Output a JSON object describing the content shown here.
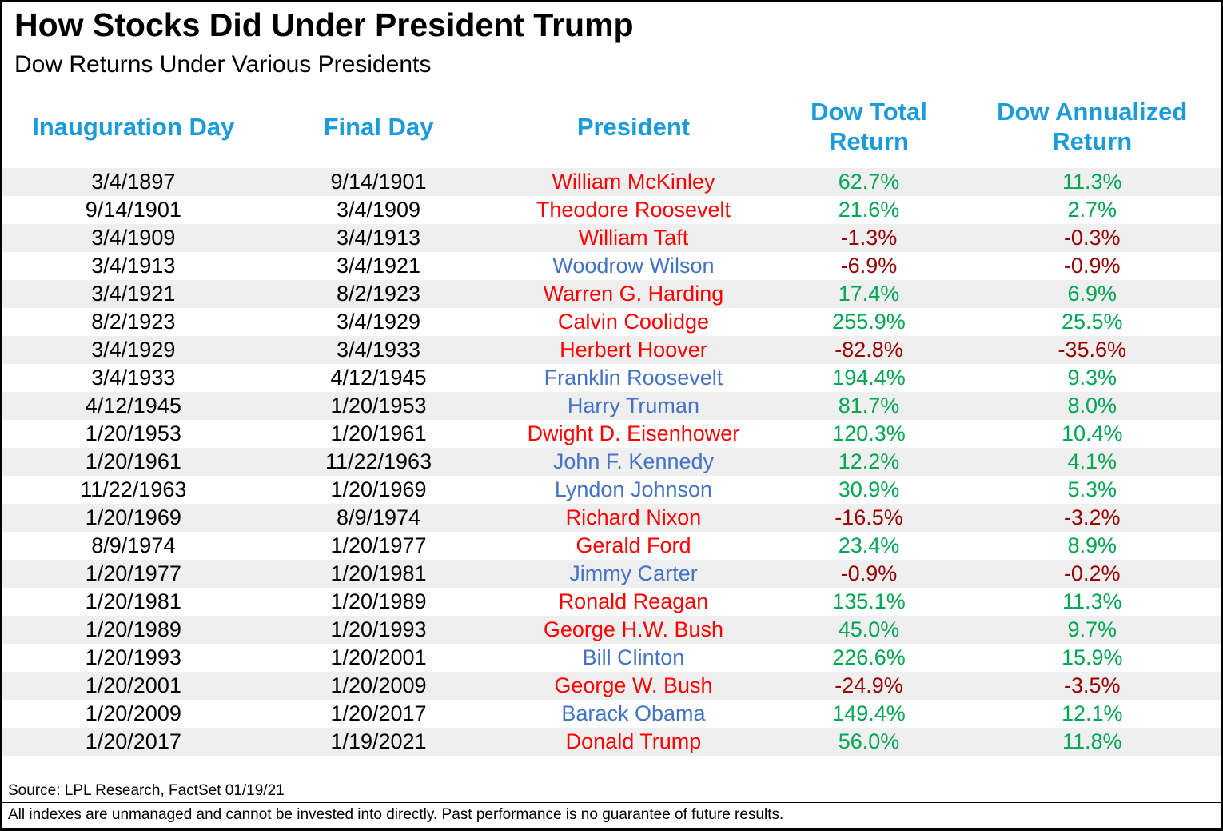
{
  "header": {
    "title": "How Stocks Did Under President Trump",
    "subtitle": "Dow Returns Under Various Presidents"
  },
  "colors": {
    "header_text": "#1B9BD9",
    "republican": "#FF0000",
    "democrat": "#4472C4",
    "positive": "#00A651",
    "negative": "#990000",
    "row_stripe": "#EFEFEF"
  },
  "chart_data": {
    "type": "table",
    "title": "How Stocks Did Under President Trump",
    "subtitle": "Dow Returns Under Various Presidents",
    "columns": [
      "Inauguration Day",
      "Final Day",
      "President",
      "Dow Total\nReturn",
      "Dow Annualized\nReturn"
    ],
    "rows": [
      {
        "inauguration_day": "3/4/1897",
        "final_day": "9/14/1901",
        "president": "William McKinley",
        "party": "republican",
        "dow_total_return": "62.7%",
        "dow_annualized_return": "11.3%"
      },
      {
        "inauguration_day": "9/14/1901",
        "final_day": "3/4/1909",
        "president": "Theodore Roosevelt",
        "party": "republican",
        "dow_total_return": "21.6%",
        "dow_annualized_return": "2.7%"
      },
      {
        "inauguration_day": "3/4/1909",
        "final_day": "3/4/1913",
        "president": "William Taft",
        "party": "republican",
        "dow_total_return": "-1.3%",
        "dow_annualized_return": "-0.3%"
      },
      {
        "inauguration_day": "3/4/1913",
        "final_day": "3/4/1921",
        "president": "Woodrow Wilson",
        "party": "democrat",
        "dow_total_return": "-6.9%",
        "dow_annualized_return": "-0.9%"
      },
      {
        "inauguration_day": "3/4/1921",
        "final_day": "8/2/1923",
        "president": "Warren G. Harding",
        "party": "republican",
        "dow_total_return": "17.4%",
        "dow_annualized_return": "6.9%"
      },
      {
        "inauguration_day": "8/2/1923",
        "final_day": "3/4/1929",
        "president": "Calvin Coolidge",
        "party": "republican",
        "dow_total_return": "255.9%",
        "dow_annualized_return": "25.5%"
      },
      {
        "inauguration_day": "3/4/1929",
        "final_day": "3/4/1933",
        "president": "Herbert Hoover",
        "party": "republican",
        "dow_total_return": "-82.8%",
        "dow_annualized_return": "-35.6%"
      },
      {
        "inauguration_day": "3/4/1933",
        "final_day": "4/12/1945",
        "president": "Franklin Roosevelt",
        "party": "democrat",
        "dow_total_return": "194.4%",
        "dow_annualized_return": "9.3%"
      },
      {
        "inauguration_day": "4/12/1945",
        "final_day": "1/20/1953",
        "president": "Harry Truman",
        "party": "democrat",
        "dow_total_return": "81.7%",
        "dow_annualized_return": "8.0%"
      },
      {
        "inauguration_day": "1/20/1953",
        "final_day": "1/20/1961",
        "president": "Dwight D. Eisenhower",
        "party": "republican",
        "dow_total_return": "120.3%",
        "dow_annualized_return": "10.4%"
      },
      {
        "inauguration_day": "1/20/1961",
        "final_day": "11/22/1963",
        "president": "John F. Kennedy",
        "party": "democrat",
        "dow_total_return": "12.2%",
        "dow_annualized_return": "4.1%"
      },
      {
        "inauguration_day": "11/22/1963",
        "final_day": "1/20/1969",
        "president": "Lyndon Johnson",
        "party": "democrat",
        "dow_total_return": "30.9%",
        "dow_annualized_return": "5.3%"
      },
      {
        "inauguration_day": "1/20/1969",
        "final_day": "8/9/1974",
        "president": "Richard Nixon",
        "party": "republican",
        "dow_total_return": "-16.5%",
        "dow_annualized_return": "-3.2%"
      },
      {
        "inauguration_day": "8/9/1974",
        "final_day": "1/20/1977",
        "president": "Gerald Ford",
        "party": "republican",
        "dow_total_return": "23.4%",
        "dow_annualized_return": "8.9%"
      },
      {
        "inauguration_day": "1/20/1977",
        "final_day": "1/20/1981",
        "president": "Jimmy Carter",
        "party": "democrat",
        "dow_total_return": "-0.9%",
        "dow_annualized_return": "-0.2%"
      },
      {
        "inauguration_day": "1/20/1981",
        "final_day": "1/20/1989",
        "president": "Ronald Reagan",
        "party": "republican",
        "dow_total_return": "135.1%",
        "dow_annualized_return": "11.3%"
      },
      {
        "inauguration_day": "1/20/1989",
        "final_day": "1/20/1993",
        "president": "George H.W. Bush",
        "party": "republican",
        "dow_total_return": "45.0%",
        "dow_annualized_return": "9.7%"
      },
      {
        "inauguration_day": "1/20/1993",
        "final_day": "1/20/2001",
        "president": "Bill Clinton",
        "party": "democrat",
        "dow_total_return": "226.6%",
        "dow_annualized_return": "15.9%"
      },
      {
        "inauguration_day": "1/20/2001",
        "final_day": "1/20/2009",
        "president": "George W. Bush",
        "party": "republican",
        "dow_total_return": "-24.9%",
        "dow_annualized_return": "-3.5%"
      },
      {
        "inauguration_day": "1/20/2009",
        "final_day": "1/20/2017",
        "president": "Barack Obama",
        "party": "democrat",
        "dow_total_return": "149.4%",
        "dow_annualized_return": "12.1%"
      },
      {
        "inauguration_day": "1/20/2017",
        "final_day": "1/19/2021",
        "president": "Donald Trump",
        "party": "republican",
        "dow_total_return": "56.0%",
        "dow_annualized_return": "11.8%"
      }
    ]
  },
  "footer": {
    "source": "Source: LPL Research, FactSet 01/19/21",
    "disclaimer": "All indexes are unmanaged and cannot be invested into directly. Past performance is no guarantee of future results."
  }
}
